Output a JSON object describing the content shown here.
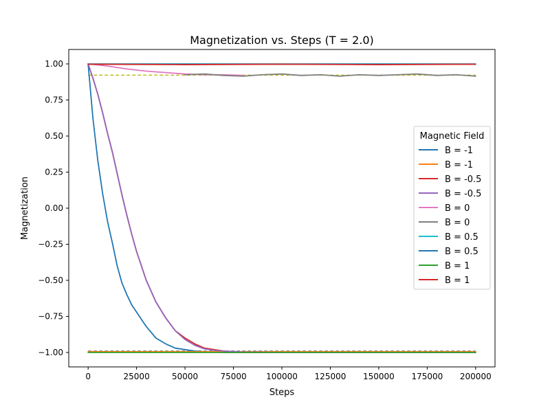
{
  "chart_data": {
    "type": "line",
    "title": "Magnetization vs. Steps (T = 2.0)",
    "xlabel": "Steps",
    "ylabel": "Magnetization",
    "xlim": [
      -10000,
      210000
    ],
    "ylim": [
      -1.1,
      1.1
    ],
    "xticks": [
      0,
      25000,
      50000,
      75000,
      100000,
      125000,
      150000,
      175000,
      200000
    ],
    "yticks": [
      1.0,
      0.75,
      0.5,
      0.25,
      0.0,
      -0.25,
      -0.5,
      -0.75,
      -1.0
    ],
    "ytick_labels": [
      "1.00",
      "0.75",
      "0.50",
      "0.25",
      "0.00",
      "−0.25",
      "−0.50",
      "−0.75",
      "−1.00"
    ],
    "grid": false,
    "legend": {
      "title": "Magnetic Field",
      "placement": "center-right"
    },
    "series": [
      {
        "name": "B = -1",
        "color": "#1f77b4",
        "x": [
          0,
          2500,
          5000,
          7500,
          10000,
          12500,
          15000,
          17500,
          20000,
          22500,
          25000,
          30000,
          35000,
          40000,
          45000,
          50000,
          55000,
          60000,
          70000,
          80000,
          100000,
          150000,
          200000
        ],
        "y": [
          1.0,
          0.62,
          0.33,
          0.1,
          -0.09,
          -0.24,
          -0.4,
          -0.52,
          -0.6,
          -0.67,
          -0.72,
          -0.82,
          -0.9,
          -0.94,
          -0.97,
          -0.98,
          -0.99,
          -0.995,
          -1.0,
          -1.0,
          -1.0,
          -1.0,
          -1.0
        ]
      },
      {
        "name": "B = -1",
        "color": "#ff7f0e",
        "x": [
          0,
          200000
        ],
        "y": [
          -0.995,
          -0.995
        ]
      },
      {
        "name": "B = -0.5",
        "color": "#d62728",
        "x": [
          0,
          2500,
          5000,
          7500,
          10000,
          12500,
          15000,
          17500,
          20000,
          22500,
          25000,
          30000,
          35000,
          40000,
          45000,
          50000,
          55000,
          60000,
          65000,
          70000,
          80000,
          100000,
          150000,
          200000
        ],
        "y": [
          1.0,
          0.9,
          0.79,
          0.66,
          0.52,
          0.39,
          0.24,
          0.09,
          -0.05,
          -0.18,
          -0.3,
          -0.5,
          -0.65,
          -0.76,
          -0.85,
          -0.9,
          -0.94,
          -0.97,
          -0.98,
          -0.99,
          -1.0,
          -1.0,
          -1.0,
          -1.0
        ]
      },
      {
        "name": "B = -0.5",
        "color": "#9467bd",
        "x": [
          0,
          2500,
          5000,
          7500,
          10000,
          12500,
          15000,
          17500,
          20000,
          22500,
          25000,
          30000,
          35000,
          40000,
          45000,
          50000,
          55000,
          60000,
          65000,
          70000,
          80000,
          100000,
          150000,
          200000
        ],
        "y": [
          1.0,
          0.9,
          0.79,
          0.66,
          0.52,
          0.39,
          0.24,
          0.09,
          -0.05,
          -0.18,
          -0.3,
          -0.5,
          -0.65,
          -0.76,
          -0.85,
          -0.91,
          -0.95,
          -0.975,
          -0.985,
          -0.99,
          -0.997,
          -1.0,
          -1.0,
          -1.0
        ]
      },
      {
        "name": "B = 0",
        "color": "#e377c2",
        "x": [
          0,
          10000,
          20000,
          30000,
          40000,
          50000,
          60000,
          70000,
          80000
        ],
        "y": [
          1.0,
          0.985,
          0.965,
          0.95,
          0.94,
          0.93,
          0.925,
          0.925,
          0.92
        ]
      },
      {
        "name": "B = 0",
        "color": "#7f7f7f",
        "x": [
          50000,
          60000,
          70000,
          80000,
          90000,
          100000,
          110000,
          120000,
          130000,
          140000,
          150000,
          160000,
          170000,
          180000,
          190000,
          200000
        ],
        "y": [
          0.925,
          0.93,
          0.92,
          0.915,
          0.925,
          0.93,
          0.92,
          0.925,
          0.915,
          0.925,
          0.92,
          0.925,
          0.93,
          0.92,
          0.925,
          0.915
        ]
      },
      {
        "name": "B = 0.5",
        "color": "#17becf",
        "x": [
          0,
          200000
        ],
        "y": [
          1.0,
          1.0
        ]
      },
      {
        "name": "B = 0.5",
        "color": "#1f77b4",
        "x": [
          0,
          200000
        ],
        "y": [
          0.998,
          0.998
        ]
      },
      {
        "name": "B = 1",
        "color": "#2ca02c",
        "x": [
          0,
          200000
        ],
        "y": [
          -1.0,
          -1.0
        ]
      },
      {
        "name": "B = 1",
        "color": "#d62728",
        "x": [
          0,
          50000,
          100000,
          150000,
          200000
        ],
        "y": [
          0.998,
          0.995,
          0.998,
          0.995,
          0.998
        ]
      }
    ],
    "reference_lines": [
      {
        "color": "#bcbd22",
        "dashed": true,
        "y": 0.922
      },
      {
        "color": "#7f7f7f",
        "dashed": true,
        "y": -0.99
      },
      {
        "color": "#2ca02c",
        "dashed": true,
        "y": -0.997
      },
      {
        "color": "#d62728",
        "dashed": true,
        "y": 0.997
      }
    ]
  }
}
